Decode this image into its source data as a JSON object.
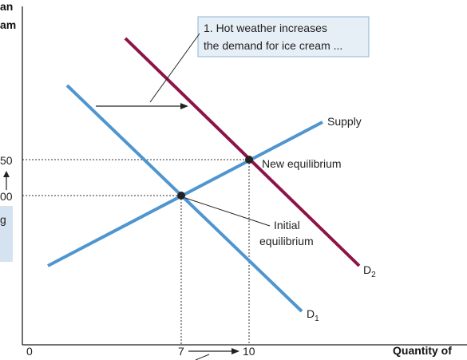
{
  "y_axis_title_fragments": [
    "an",
    "am"
  ],
  "y_ticks": [
    {
      "label": "50"
    },
    {
      "label": "00"
    }
  ],
  "y_side_box_fragment": "g",
  "x_axis_title": "Quantity of",
  "x_ticks": [
    "0",
    "7",
    "10"
  ],
  "callout": {
    "line1": "1. Hot weather increases",
    "line2": "the demand for ice cream ..."
  },
  "curves": {
    "supply_label": "Supply",
    "d1_label": "D",
    "d1_sub": "1",
    "d2_label": "D",
    "d2_sub": "2"
  },
  "annotations": {
    "new_eq": "New equilibrium",
    "initial_line1": "Initial",
    "initial_line2": "equilibrium"
  },
  "colors": {
    "demand": "#4f95cf",
    "supply": "#4f95cf",
    "new_demand": "#8c1446",
    "callout_bg": "#e6eef6",
    "callout_border": "#8fb3d3",
    "side_box": "#d5e3f0",
    "axis": "#222222"
  }
}
